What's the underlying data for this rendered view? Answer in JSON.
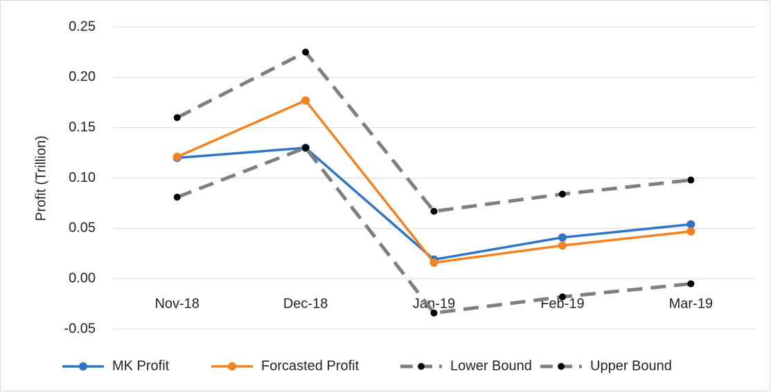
{
  "chart_data": {
    "type": "line",
    "y_label": "Profit (Trillion)",
    "categories": [
      "Nov-18",
      "Dec-18",
      "Jan-19",
      "Feb-19",
      "Mar-19"
    ],
    "series": [
      {
        "name": "MK Profit",
        "color": "#2e75c6",
        "line_style": "solid",
        "marker_color": "#2e75c6",
        "values": [
          0.12,
          0.13,
          0.019,
          0.041,
          0.054
        ]
      },
      {
        "name": "Forcasted Profit",
        "color": "#f58220",
        "line_style": "solid",
        "marker_color": "#f58220",
        "values": [
          0.121,
          0.177,
          0.016,
          0.033,
          0.047
        ]
      },
      {
        "name": "Lower Bound",
        "color": "#7f7f7f",
        "line_style": "dashed",
        "marker_color": "#000000",
        "values": [
          0.081,
          0.13,
          -0.034,
          -0.018,
          -0.005
        ]
      },
      {
        "name": "Upper Bound",
        "color": "#7f7f7f",
        "line_style": "dashed",
        "marker_color": "#000000",
        "values": [
          0.16,
          0.225,
          0.067,
          0.084,
          0.098
        ]
      }
    ],
    "ylim": [
      -0.05,
      0.25
    ],
    "yticks": [
      -0.05,
      {
        "value": 0,
        "label": "0.00"
      },
      0.05,
      {
        "value": 0.1,
        "label": "0.10"
      },
      0.15,
      {
        "value": 0.2,
        "label": "0.20"
      },
      0.25
    ],
    "grid": true,
    "legend": "bottom"
  }
}
